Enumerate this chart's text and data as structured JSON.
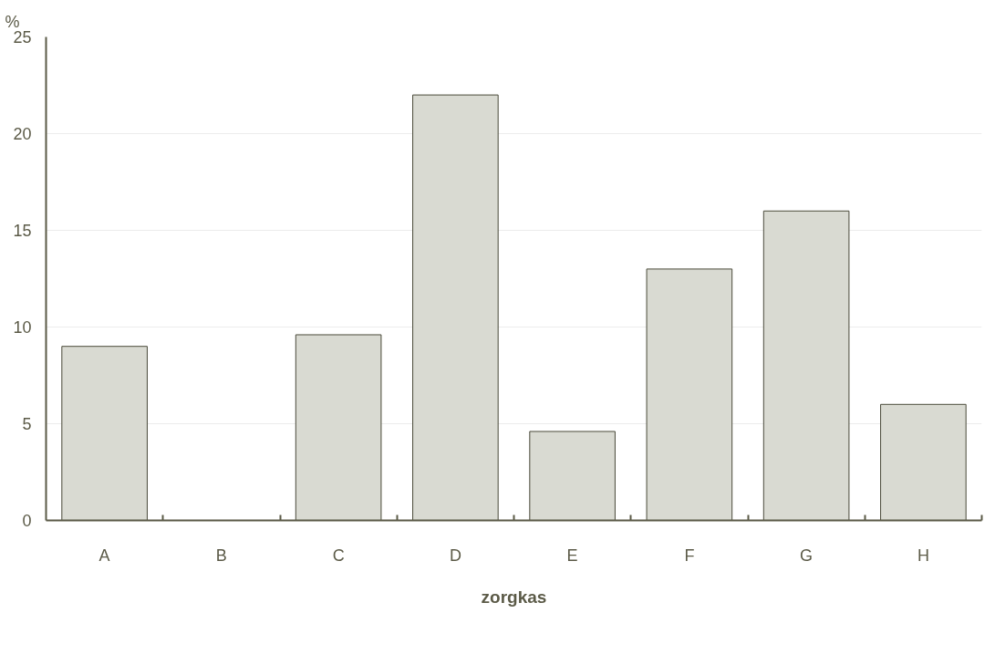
{
  "chart_data": {
    "type": "bar",
    "ylabel": "%",
    "xlabel": "zorgkas",
    "categories": [
      "A",
      "B",
      "C",
      "D",
      "E",
      "F",
      "G",
      "H"
    ],
    "values": [
      9.0,
      0,
      9.6,
      22.0,
      4.6,
      13.0,
      16.0,
      6.0
    ],
    "color": "#d9dad2",
    "ylim": [
      0,
      25
    ],
    "yticks": [
      0,
      5,
      10,
      15,
      20,
      25
    ],
    "grid": "y"
  }
}
